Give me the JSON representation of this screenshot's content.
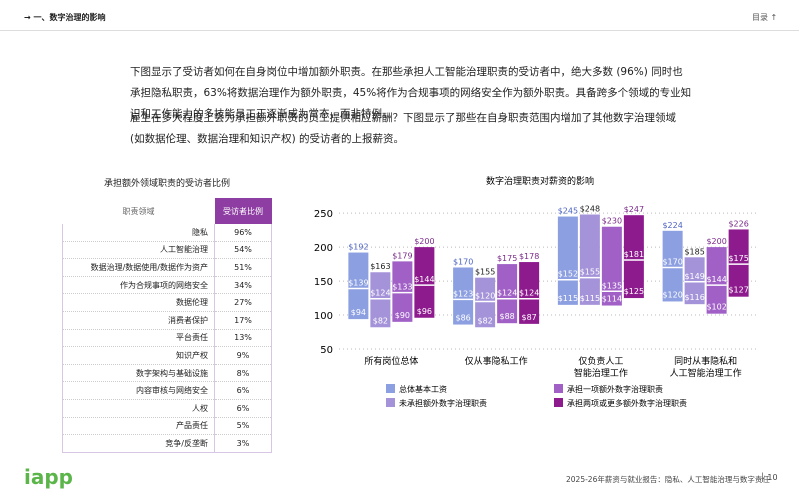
{
  "header": {
    "section": "→ 一、数字治理的影响",
    "toc": "目录 ↑"
  },
  "paragraphs": [
    "下图显示了受访者如何在自身岗位中增加额外职责。在那些承担人工智能治理职责的受访者中，绝大多数 (96%) 同时也承担隐私职责，63%将数据治理作为额外职责，45%将作为合规事项的网络安全作为额外职责。具备跨多个领域的专业知识和工作能力的多技能员工正逐渐成为常态，而非特例。",
    "雇主在多大程度上会为承担额外职责的员工提供相应薪酬？下图显示了那些在自身职责范围内增加了其他数字治理领域 (如数据伦理、数据治理和知识产权) 的受访者的上报薪资。"
  ],
  "table": {
    "title": "承担额外领域职责的受访者比例",
    "columns": [
      "职责领域",
      "受访者比例"
    ],
    "rows": [
      [
        "隐私",
        "96%"
      ],
      [
        "人工智能治理",
        "54%"
      ],
      [
        "数据治理/数据使用/数据作为资产",
        "51%"
      ],
      [
        "作为合规事项的网络安全",
        "34%"
      ],
      [
        "数据伦理",
        "27%"
      ],
      [
        "消费者保护",
        "17%"
      ],
      [
        "平台责任",
        "13%"
      ],
      [
        "知识产权",
        "9%"
      ],
      [
        "数字架构与基础设施",
        "8%"
      ],
      [
        "内容审核与网络安全",
        "6%"
      ],
      [
        "人权",
        "6%"
      ],
      [
        "产品责任",
        "5%"
      ],
      [
        "竞争/反垄断",
        "3%"
      ]
    ]
  },
  "chart_data": {
    "type": "range-bar",
    "title": "数字治理职责对薪资的影响",
    "categories": [
      [
        "所有岗位总体"
      ],
      [
        "仅从事隐私工作"
      ],
      [
        "仅负责人工",
        "智能治理工作"
      ],
      [
        "同时从事隐私和",
        "人工智能治理工作"
      ]
    ],
    "ylim": [
      50,
      262
    ],
    "yticks": [
      50,
      100,
      150,
      200,
      250
    ],
    "grid": true,
    "series": [
      {
        "name": "总体基本工资",
        "color": "#8c9fe0",
        "high": [
          192,
          170,
          245,
          224
        ],
        "median": [
          139,
          123,
          152,
          170
        ],
        "low": [
          94,
          86,
          115,
          120
        ],
        "high_labels": [
          "$192",
          "$170",
          "$245",
          "$224"
        ],
        "median_labels": [
          "$139",
          "$123",
          "$152",
          "$170"
        ],
        "low_labels": [
          "$94",
          "$86",
          "$115",
          "$120"
        ]
      },
      {
        "name": "未承担额外数字治理职责",
        "color": "#a493d9",
        "high": [
          163,
          155,
          248,
          185
        ],
        "median": [
          124,
          120,
          155,
          149
        ],
        "low": [
          82,
          82,
          115,
          116
        ],
        "high_labels": [
          "$163",
          "$155",
          "$248",
          "$185"
        ],
        "median_labels": [
          "$124",
          "$120",
          "$155",
          "$149"
        ],
        "low_labels": [
          "$82",
          "$82",
          "$115",
          "$116"
        ]
      },
      {
        "name": "承担一项额外数字治理职责",
        "color": "#a060c6",
        "high": [
          179,
          175,
          230,
          200
        ],
        "median": [
          133,
          124,
          135,
          144
        ],
        "low": [
          90,
          88,
          114,
          102
        ],
        "high_labels": [
          "$179",
          "$175",
          "$230",
          "$200"
        ],
        "median_labels": [
          "$133",
          "$124",
          "$135",
          "$144"
        ],
        "low_labels": [
          "$90",
          "$88",
          "$114",
          "$102"
        ]
      },
      {
        "name": "承担两项或更多额外数字治理职责",
        "color": "#8e1b8e",
        "high": [
          200,
          178,
          247,
          226
        ],
        "median": [
          144,
          124,
          181,
          175
        ],
        "low": [
          96,
          87,
          125,
          127
        ],
        "high_labels": [
          "$200",
          "$178",
          "$247",
          "$226"
        ],
        "median_labels": [
          "$144",
          "$124",
          "$181",
          "$175"
        ],
        "low_labels": [
          "$96",
          "$87",
          "$125",
          "$127"
        ]
      }
    ]
  },
  "footer": {
    "logo": "iapp",
    "report": "2025-26年薪资与就业报告：隐私、人工智能治理与数字责任",
    "page": "10"
  }
}
